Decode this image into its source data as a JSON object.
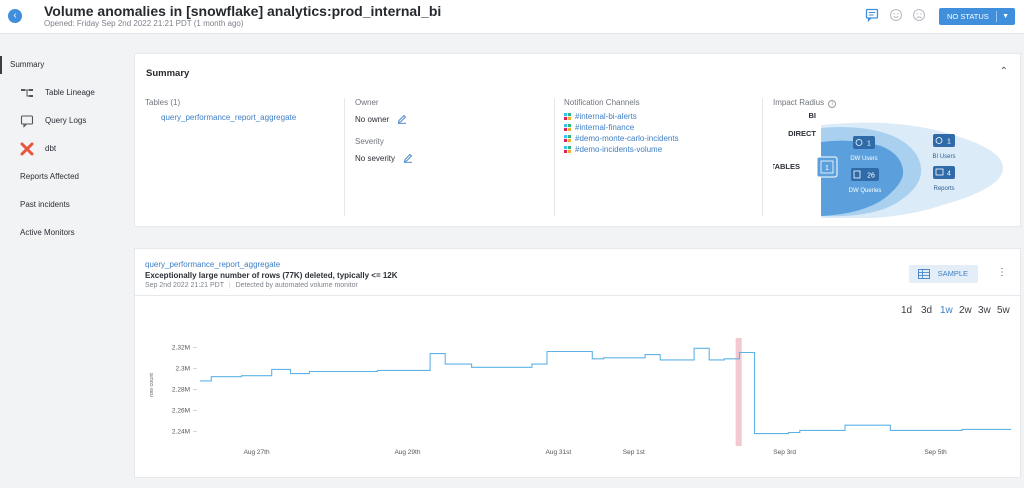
{
  "header": {
    "title": "Volume anomalies in [snowflake] analytics:prod_internal_bi",
    "subtitle": "Opened: Friday Sep 2nd 2022 21:21 PDT (1 month ago)",
    "status_label": "NO STATUS"
  },
  "sidebar": {
    "items": [
      {
        "label": "Summary"
      },
      {
        "label": "Table Lineage"
      },
      {
        "label": "Query Logs"
      },
      {
        "label": "dbt"
      },
      {
        "label": "Reports Affected"
      },
      {
        "label": "Past incidents"
      },
      {
        "label": "Active Monitors"
      }
    ]
  },
  "summary": {
    "title": "Summary",
    "tables_label": "Tables (1)",
    "table_name": "query_performance_report_aggregate",
    "owner_label": "Owner",
    "owner_value": "No owner",
    "severity_label": "Severity",
    "severity_value": "No severity",
    "channels_label": "Notification Channels",
    "channels": [
      "#internal-bi-alerts",
      "#internal-finance",
      "#demo-monte-carlo-incidents",
      "#demo-incidents-volume"
    ],
    "impact_label": "Impact Radius",
    "impact": {
      "bi_label": "BI",
      "direct_label": "DIRECT",
      "tables_label": "TABLES",
      "tables_count": "1",
      "dw_users_count": "1",
      "dw_users_label": "DW Users",
      "dw_queries_count": "26",
      "dw_queries_label": "DW Queries",
      "bi_users_count": "1",
      "bi_users_label": "BI Users",
      "reports_count": "4",
      "reports_label": "Reports"
    }
  },
  "incident": {
    "table_link": "query_performance_report_aggregate",
    "description": "Exceptionally large number of rows (77K) deleted, typically <= 12K",
    "timestamp": "Sep 2nd 2022 21:21 PDT",
    "detector": "Detected by automated volume monitor",
    "sample_label": "SAMPLE",
    "ranges": [
      "1d",
      "3d",
      "1w",
      "2w",
      "3w",
      "5w"
    ],
    "selected_range": "1w"
  },
  "colors": {
    "accent": "#3f8fdc",
    "line": "#5fb3e6",
    "anomaly": "#f3c9cf",
    "impact_light": "#dcebf8",
    "impact_mid": "#a9d0ef",
    "impact_dark": "#5ba0dc"
  },
  "chart_data": {
    "type": "line",
    "ylabel": "row count",
    "yticks": [
      "2.32M",
      "2.3M",
      "2.28M",
      "2.26M",
      "2.24M"
    ],
    "ylim": [
      2230000,
      2325000
    ],
    "xticks": [
      "Aug 27th",
      "Aug 29th",
      "Aug 31st",
      "Sep 1st",
      "Sep 3rd",
      "Sep 5th"
    ],
    "xtick_positions": [
      0.75,
      2.75,
      4.75,
      5.75,
      7.75,
      9.75
    ],
    "xlim": [
      0,
      10.75
    ],
    "anomaly_window": [
      7.1,
      7.18
    ],
    "series": [
      {
        "x": [
          0.0,
          0.15,
          0.15,
          0.55,
          0.55,
          0.95,
          0.95,
          1.2,
          1.2,
          1.45,
          1.45,
          2.35,
          2.35,
          3.05,
          3.05,
          3.25,
          3.25,
          3.6,
          3.6,
          4.4,
          4.4,
          4.6,
          4.6,
          5.2,
          5.2,
          5.35,
          5.35,
          5.9,
          5.9,
          6.1,
          6.1,
          6.55,
          6.55,
          6.75,
          6.75,
          6.95,
          6.95,
          7.15,
          7.15,
          7.35,
          7.35,
          7.8,
          7.8,
          7.95,
          7.95,
          8.55,
          8.55,
          9.15,
          9.15,
          10.1,
          10.1,
          10.75
        ],
        "y": [
          2288000,
          2288000,
          2292000,
          2292000,
          2293000,
          2293000,
          2299000,
          2299000,
          2295000,
          2295000,
          2297000,
          2297000,
          2298000,
          2298000,
          2314000,
          2314000,
          2304000,
          2304000,
          2301000,
          2301000,
          2304000,
          2304000,
          2316000,
          2316000,
          2309000,
          2309000,
          2310000,
          2310000,
          2313000,
          2313000,
          2308000,
          2308000,
          2319000,
          2319000,
          2308000,
          2308000,
          2309000,
          2309000,
          2315000,
          2315000,
          2238000,
          2238000,
          2239000,
          2239000,
          2241000,
          2241000,
          2246000,
          2246000,
          2241000,
          2241000,
          2242000,
          2242000
        ]
      }
    ],
    "grid": false,
    "legend": "none"
  }
}
